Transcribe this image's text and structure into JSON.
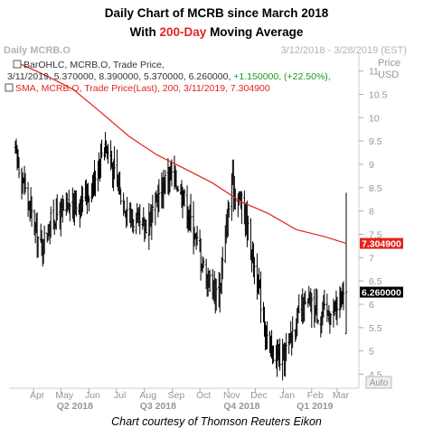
{
  "title": {
    "line1": "Daily Chart of MCRB since March 2018",
    "line2_prefix": "With ",
    "line2_highlight": "200-Day",
    "line2_suffix": " Moving Average"
  },
  "caption": "Chart courtesy of Thomson Reuters Eikon",
  "header": {
    "left": "Daily MCRB.O",
    "right": "3/12/2018 - 3/28/2019 (EST)"
  },
  "price_axis": {
    "title": "Price",
    "unit": "USD",
    "auto_label": "Auto"
  },
  "legend": {
    "bar_line1": "BarOHLC, MCRB.O, Trade Price,",
    "bar_line2_prefix": "3/11/2019, 5.370000, 8.390000, 5.370000, 6.260000, ",
    "bar_line2_change": "+1.150000, (+22.50%),",
    "sma_line": "SMA, MCRB.O, Trade Price(Last),  200,  3/11/2019, 7.304900"
  },
  "colors": {
    "price_bars": "#000000",
    "sma": "#e3231f",
    "change_positive": "#1a9a1a",
    "sma_tag": "#e3231f",
    "price_tag": "#000000",
    "header_text": "#b4b4b4",
    "axis_text": "#969696"
  },
  "chart_data": {
    "type": "line",
    "title": "Daily Chart of MCRB since March 2018 With 200-Day Moving Average",
    "xlabel": "",
    "ylabel": "Price USD",
    "ylim": [
      4.2,
      11.4
    ],
    "y_ticks": [
      4.5,
      5,
      5.5,
      6,
      6.5,
      7,
      7.5,
      8,
      8.5,
      9,
      9.5,
      10,
      10.5,
      11
    ],
    "x_months": [
      "Apr",
      "May",
      "Jun",
      "Jul",
      "Aug",
      "Sep",
      "Oct",
      "Nov",
      "Dec",
      "Jan",
      "Feb",
      "Mar"
    ],
    "x_quarters": [
      "Q2 2018",
      "Q3 2018",
      "Q4 2018",
      "Q1 2019"
    ],
    "grid": false,
    "legend_position": "top-left",
    "series": [
      {
        "name": "BarOHLC, MCRB.O, Trade Price",
        "style": "ohlc-bars",
        "x": [
          "2018-03-12",
          "2018-03-26",
          "2018-04-09",
          "2018-04-23",
          "2018-05-07",
          "2018-05-21",
          "2018-06-04",
          "2018-06-18",
          "2018-07-02",
          "2018-07-16",
          "2018-07-30",
          "2018-08-13",
          "2018-08-27",
          "2018-09-10",
          "2018-09-24",
          "2018-10-08",
          "2018-10-22",
          "2018-11-05",
          "2018-11-19",
          "2018-12-03",
          "2018-12-17",
          "2018-12-31",
          "2019-01-14",
          "2019-01-28",
          "2019-02-11",
          "2019-02-25",
          "2019-03-11"
        ],
        "close": [
          9.3,
          8.2,
          7.2,
          7.9,
          8.0,
          8.2,
          8.5,
          9.5,
          8.6,
          7.9,
          7.6,
          8.1,
          8.8,
          8.5,
          7.6,
          6.6,
          6.2,
          8.6,
          8.0,
          6.5,
          5.0,
          4.8,
          5.6,
          6.0,
          5.8,
          5.8,
          6.26
        ]
      },
      {
        "name": "SMA, MCRB.O, Trade Price(Last), 200",
        "style": "line",
        "x": [
          "2018-03-12",
          "2018-04-15",
          "2018-05-15",
          "2018-06-15",
          "2018-07-15",
          "2018-08-15",
          "2018-09-15",
          "2018-10-15",
          "2018-11-15",
          "2018-12-15",
          "2019-01-15",
          "2019-02-15",
          "2019-03-11"
        ],
        "values": [
          11.2,
          10.9,
          10.6,
          10.1,
          9.6,
          9.2,
          8.9,
          8.6,
          8.2,
          7.95,
          7.6,
          7.45,
          7.3049
        ]
      }
    ],
    "value_tags": [
      {
        "label": "7.304900",
        "series": "SMA"
      },
      {
        "label": "6.260000",
        "series": "Last price"
      }
    ]
  }
}
